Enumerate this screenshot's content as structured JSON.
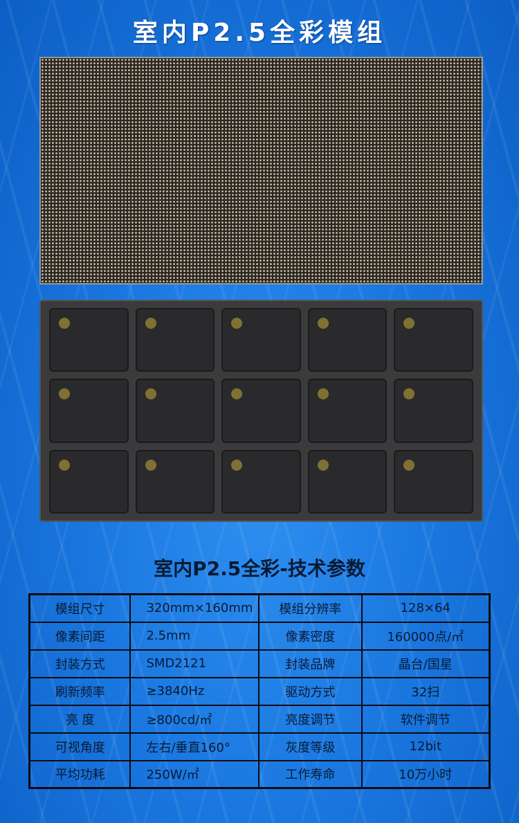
{
  "title": "室内P2.5全彩模组",
  "subtitle": "室内P2.5全彩-技术参数",
  "specs": [
    [
      "模组尺寸",
      "320mm×160mm",
      "模组分辨率",
      "128×64"
    ],
    [
      "像素间距",
      "2.5mm",
      "像素密度",
      "160000点/㎡"
    ],
    [
      "封装方式",
      "SMD2121",
      "封装品牌",
      "晶台/国星"
    ],
    [
      "刷新频率",
      "≥3840Hz",
      "驱动方式",
      "32扫"
    ],
    [
      "亮 度",
      "≥800cd/㎡",
      "亮度调节",
      "软件调节"
    ],
    [
      "可视角度",
      "左右/垂直160°",
      "灰度等级",
      "12bit"
    ],
    [
      "平均功耗",
      "250W/㎡",
      "工作寿命",
      "10万小时"
    ]
  ]
}
